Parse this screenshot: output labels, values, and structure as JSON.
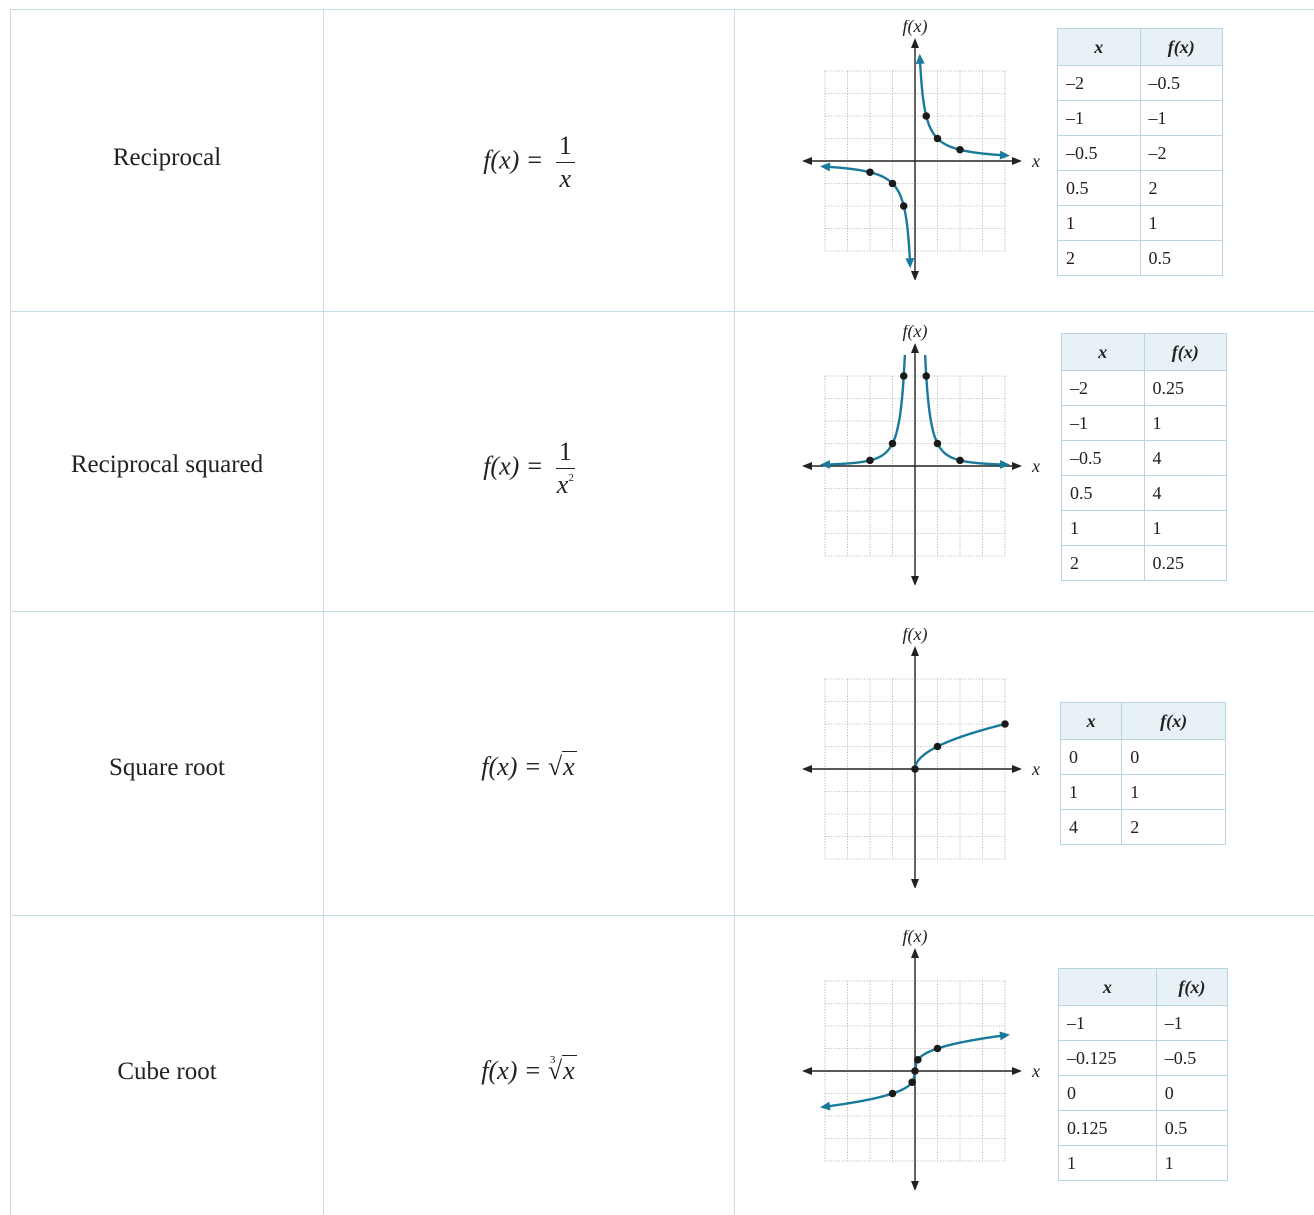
{
  "rows": [
    {
      "name": "Reciprocal",
      "formula_lhs": "f(x) =",
      "formula_num": "1",
      "formula_den": "x",
      "graph_labels": {
        "y": "f(x)",
        "x": "x"
      },
      "table_headers": [
        "x",
        "f(x)"
      ],
      "table": [
        [
          "–2",
          "–0.5"
        ],
        [
          "–1",
          "–1"
        ],
        [
          "–0.5",
          "–2"
        ],
        [
          "0.5",
          "2"
        ],
        [
          "1",
          "1"
        ],
        [
          "2",
          "0.5"
        ]
      ]
    },
    {
      "name": "Reciprocal squared",
      "formula_lhs": "f(x) =",
      "formula_num": "1",
      "formula_den": "x",
      "formula_exp": "2",
      "graph_labels": {
        "y": "f(x)",
        "x": "x"
      },
      "table_headers": [
        "x",
        "f(x)"
      ],
      "table": [
        [
          "–2",
          "0.25"
        ],
        [
          "–1",
          "1"
        ],
        [
          "–0.5",
          "4"
        ],
        [
          "0.5",
          "4"
        ],
        [
          "1",
          "1"
        ],
        [
          "2",
          "0.25"
        ]
      ]
    },
    {
      "name": "Square root",
      "formula_lhs": "f(x) =",
      "formula_rad": "x",
      "graph_labels": {
        "y": "f(x)",
        "x": "x"
      },
      "table_headers": [
        "x",
        "f(x)"
      ],
      "table": [
        [
          "0",
          "0"
        ],
        [
          "1",
          "1"
        ],
        [
          "4",
          "2"
        ]
      ]
    },
    {
      "name": "Cube root",
      "formula_lhs": "f(x) =",
      "formula_idx": "3",
      "formula_rad": "x",
      "graph_labels": {
        "y": "f(x)",
        "x": "x"
      },
      "table_headers": [
        "x",
        "f(x)"
      ],
      "table": [
        [
          "–1",
          "–1"
        ],
        [
          "–0.125",
          "–0.5"
        ],
        [
          "0",
          "0"
        ],
        [
          "0.125",
          "0.5"
        ],
        [
          "1",
          "1"
        ]
      ]
    }
  ],
  "colors": {
    "curve": "#1a7a9c",
    "border": "#c9dde6",
    "header_bg": "#e8f1f5"
  }
}
